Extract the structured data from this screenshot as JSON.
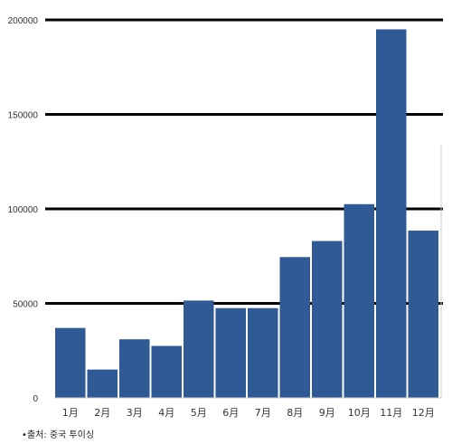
{
  "chart_data": {
    "type": "bar",
    "title": "",
    "xlabel": "",
    "ylabel": "",
    "categories": [
      "1月",
      "2月",
      "3月",
      "4月",
      "5月",
      "6月",
      "7月",
      "8月",
      "9月",
      "10月",
      "11月",
      "12月"
    ],
    "values": [
      37000,
      15000,
      31000,
      27500,
      51500,
      47500,
      47500,
      74500,
      83000,
      102500,
      195000,
      88500
    ],
    "ylim": [
      0,
      200000
    ],
    "yticks": [
      0,
      50000,
      100000,
      150000,
      200000
    ],
    "ytick_labels": [
      "0",
      "50000",
      "100000",
      "150000",
      "200000"
    ],
    "grid": "horizontal",
    "legend": "none",
    "colors": {
      "bar": "#2f5a96",
      "gridline": "#000000",
      "axis": "#cccccc",
      "text": "#333333"
    }
  },
  "footnote": {
    "source": "•출처: 중국 투이싱"
  }
}
